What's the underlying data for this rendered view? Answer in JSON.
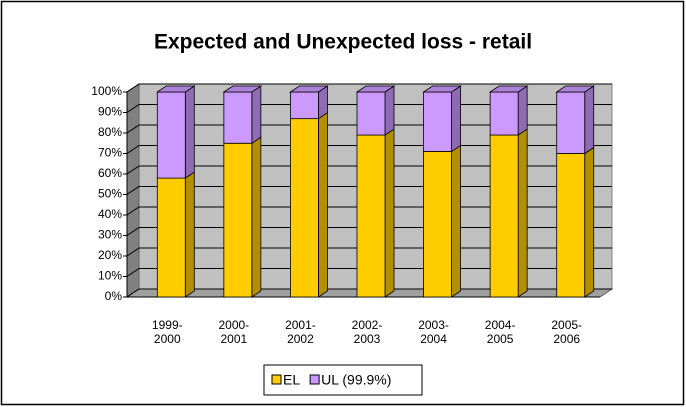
{
  "chart_data": {
    "type": "bar",
    "stacked": true,
    "title": "Expected and Unexpected loss - retail",
    "categories": [
      "1999-2000",
      "2000-2001",
      "2001-2002",
      "2002-2003",
      "2003-2004",
      "2004-2005",
      "2005-2006"
    ],
    "series": [
      {
        "name": "EL",
        "color": "#ffcc00",
        "values": [
          58,
          75,
          87,
          79,
          71,
          79,
          70
        ]
      },
      {
        "name": "UL (99.9%)",
        "color": "#cc99ff",
        "values": [
          42,
          25,
          13,
          21,
          29,
          21,
          30
        ]
      }
    ],
    "ylim": [
      0,
      100
    ],
    "yticks": [
      {
        "value": 0,
        "label": "0%"
      },
      {
        "value": 10,
        "label": "10%"
      },
      {
        "value": 20,
        "label": "20%"
      },
      {
        "value": 30,
        "label": "30%"
      },
      {
        "value": 40,
        "label": "40%"
      },
      {
        "value": 50,
        "label": "50%"
      },
      {
        "value": 60,
        "label": "60%"
      },
      {
        "value": 70,
        "label": "70%"
      },
      {
        "value": 80,
        "label": "80%"
      },
      {
        "value": 90,
        "label": "90%"
      },
      {
        "value": 100,
        "label": "100%"
      }
    ],
    "grid": true,
    "legend": "bottom"
  }
}
